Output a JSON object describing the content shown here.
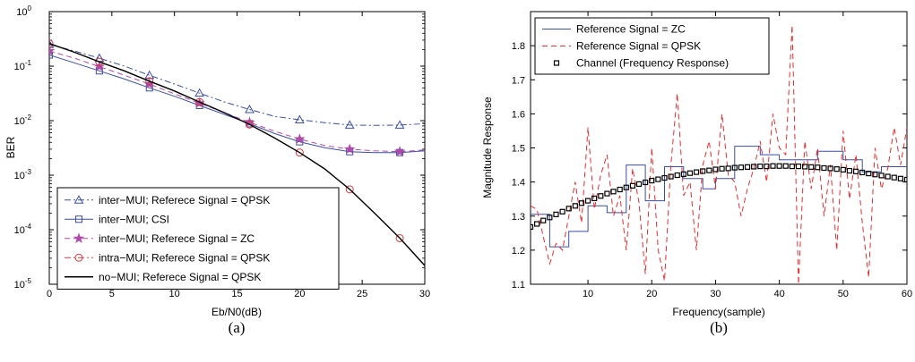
{
  "chart_data": [
    {
      "type": "line",
      "subtitle": "(a)",
      "xlabel": "Eb/N0(dB)",
      "ylabel": "BER",
      "xlim": [
        0,
        30
      ],
      "ylim": [
        1e-05,
        1
      ],
      "yscale": "log",
      "x_ticks": [
        0,
        5,
        10,
        15,
        20,
        25,
        30
      ],
      "y_tick_exponents": [
        -5,
        -4,
        -3,
        -2,
        -1,
        0
      ],
      "y_tick_base": "10",
      "grid": false,
      "legend_position": "bottom-center",
      "series": [
        {
          "name": "inter−MUI; Referece Signal = QPSK",
          "color": "#3b4fa0",
          "dash": "dash-dot",
          "marker": "triangle",
          "x": [
            0,
            2,
            4,
            6,
            8,
            10,
            12,
            14,
            16,
            18,
            20,
            22,
            24,
            26,
            28,
            30
          ],
          "y": [
            0.25,
            0.19,
            0.14,
            0.1,
            0.068,
            0.047,
            0.032,
            0.022,
            0.016,
            0.012,
            0.0104,
            0.0092,
            0.0083,
            0.0082,
            0.0083,
            0.0088
          ]
        },
        {
          "name": "inter−MUI; CSI",
          "color": "#3b4fa0",
          "dash": "solid",
          "marker": "square",
          "x": [
            0,
            2,
            4,
            6,
            8,
            10,
            12,
            14,
            16,
            18,
            20,
            22,
            24,
            26,
            28,
            30
          ],
          "y": [
            0.16,
            0.115,
            0.082,
            0.058,
            0.04,
            0.028,
            0.019,
            0.013,
            0.0088,
            0.0058,
            0.0041,
            0.0032,
            0.0027,
            0.0026,
            0.0026,
            0.0028
          ]
        },
        {
          "name": "inter−MUI; Referece Signal = ZC",
          "color": "#b04aa8",
          "dash": "dashed",
          "marker": "star",
          "x": [
            0,
            2,
            4,
            6,
            8,
            10,
            12,
            14,
            16,
            18,
            20,
            22,
            24,
            26,
            28,
            30
          ],
          "y": [
            0.19,
            0.14,
            0.098,
            0.068,
            0.047,
            0.031,
            0.021,
            0.014,
            0.0093,
            0.0064,
            0.0046,
            0.0035,
            0.003,
            0.0028,
            0.0027,
            0.0029
          ]
        },
        {
          "name": "intra−MUI; Referece Signal = QPSK",
          "color": "#d43a3a",
          "dash": "dash-dot",
          "marker": "circle",
          "x": [
            0,
            2,
            4,
            6,
            8,
            10,
            12,
            14,
            16,
            18,
            20,
            22,
            24,
            26,
            28,
            30
          ],
          "y": [
            0.26,
            0.18,
            0.12,
            0.082,
            0.053,
            0.035,
            0.022,
            0.014,
            0.0085,
            0.0048,
            0.0026,
            0.0013,
            0.00055,
            0.0002,
            7e-05,
            2.2e-05
          ]
        },
        {
          "name": "no−MUI; Referece Signal = QPSK",
          "color": "#000000",
          "dash": "solid",
          "marker": "none",
          "x": [
            0,
            2,
            4,
            6,
            8,
            10,
            12,
            14,
            16,
            18,
            20,
            22,
            24,
            26,
            28,
            30
          ],
          "y": [
            0.26,
            0.18,
            0.12,
            0.082,
            0.053,
            0.035,
            0.022,
            0.014,
            0.0085,
            0.0048,
            0.0026,
            0.0013,
            0.00055,
            0.0002,
            7e-05,
            2.2e-05
          ]
        }
      ]
    },
    {
      "type": "line",
      "subtitle": "(b)",
      "xlabel": "Frequency(sample)",
      "ylabel": "Magnitude Response",
      "xlim": [
        1,
        60
      ],
      "ylim": [
        1.1,
        1.9
      ],
      "x_ticks": [
        10,
        20,
        30,
        40,
        50,
        60
      ],
      "y_ticks": [
        "1.1",
        "1.2",
        "1.3",
        "1.4",
        "1.5",
        "1.6",
        "1.7",
        "1.8"
      ],
      "grid": false,
      "legend_position": "top-left",
      "series": [
        {
          "name": "Reference Signal = ZC",
          "color": "#3b4fa0",
          "dash": "solid",
          "marker": "none",
          "step": true,
          "x": [
            1,
            4,
            7,
            10,
            13,
            16,
            19,
            22,
            25,
            28,
            30,
            33,
            37,
            40,
            43,
            46,
            50,
            53,
            56,
            60
          ],
          "y": [
            1.305,
            1.21,
            1.255,
            1.33,
            1.31,
            1.45,
            1.345,
            1.445,
            1.41,
            1.38,
            1.41,
            1.505,
            1.48,
            1.465,
            1.465,
            1.49,
            1.465,
            1.43,
            1.445,
            1.445
          ]
        },
        {
          "name": "Reference Signal = QPSK",
          "color": "#e03030",
          "dash": "dashed",
          "marker": "none",
          "x": [
            1,
            2,
            3,
            4,
            5,
            6,
            7,
            8,
            9,
            10,
            11,
            12,
            13,
            14,
            15,
            16,
            17,
            18,
            19,
            20,
            21,
            22,
            23,
            24,
            25,
            26,
            27,
            28,
            29,
            30,
            31,
            32,
            33,
            34,
            35,
            36,
            37,
            38,
            39,
            40,
            41,
            42,
            43,
            44,
            45,
            46,
            47,
            48,
            49,
            50,
            51,
            52,
            53,
            54,
            55,
            56,
            57,
            58,
            59,
            60
          ],
          "y": [
            1.33,
            1.32,
            1.24,
            1.16,
            1.22,
            1.2,
            1.3,
            1.4,
            1.28,
            1.56,
            1.32,
            1.42,
            1.48,
            1.3,
            1.36,
            1.2,
            1.44,
            1.34,
            1.13,
            1.5,
            1.2,
            1.11,
            1.45,
            1.66,
            1.36,
            1.4,
            1.2,
            1.45,
            1.52,
            1.38,
            1.6,
            1.42,
            1.4,
            1.3,
            1.38,
            1.44,
            1.52,
            1.4,
            1.6,
            1.5,
            1.48,
            1.86,
            1.1,
            1.52,
            1.38,
            1.5,
            1.3,
            1.45,
            1.2,
            1.55,
            1.35,
            1.48,
            1.28,
            1.12,
            1.5,
            1.38,
            1.44,
            1.56,
            1.45,
            1.56
          ]
        },
        {
          "name": "Channel (Frequency Response)",
          "color": "#000000",
          "dash": "none",
          "marker": "square-open",
          "x": [
            1,
            2,
            3,
            4,
            5,
            6,
            7,
            8,
            9,
            10,
            11,
            12,
            13,
            14,
            15,
            16,
            17,
            18,
            19,
            20,
            21,
            22,
            23,
            24,
            25,
            26,
            27,
            28,
            29,
            30,
            31,
            32,
            33,
            34,
            35,
            36,
            37,
            38,
            39,
            40,
            41,
            42,
            43,
            44,
            45,
            46,
            47,
            48,
            49,
            50,
            51,
            52,
            53,
            54,
            55,
            56,
            57,
            58,
            59,
            60
          ],
          "y": [
            1.268,
            1.277,
            1.287,
            1.296,
            1.305,
            1.313,
            1.322,
            1.33,
            1.338,
            1.345,
            1.352,
            1.359,
            1.366,
            1.372,
            1.378,
            1.384,
            1.389,
            1.394,
            1.399,
            1.404,
            1.408,
            1.412,
            1.416,
            1.42,
            1.423,
            1.426,
            1.429,
            1.432,
            1.434,
            1.437,
            1.439,
            1.44,
            1.442,
            1.443,
            1.444,
            1.445,
            1.446,
            1.446,
            1.447,
            1.447,
            1.447,
            1.446,
            1.446,
            1.445,
            1.444,
            1.443,
            1.441,
            1.44,
            1.438,
            1.436,
            1.433,
            1.431,
            1.428,
            1.425,
            1.422,
            1.419,
            1.416,
            1.413,
            1.41,
            1.407
          ]
        }
      ]
    }
  ]
}
